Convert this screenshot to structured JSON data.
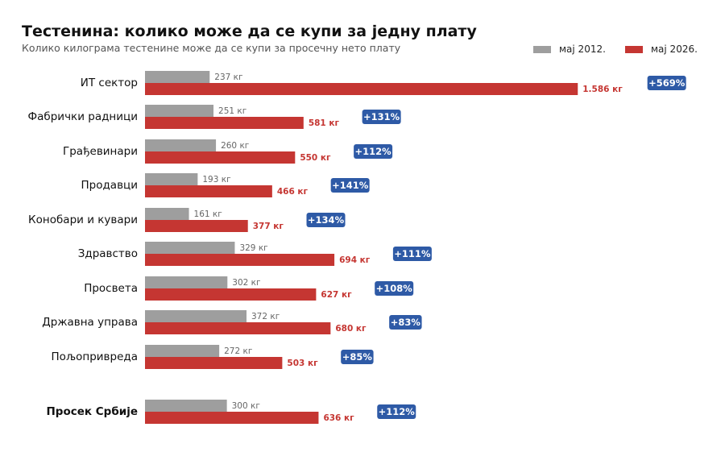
{
  "title": "Тестенина: колико може да се купи за једну плату",
  "subtitle": "Колико килограма тестенине може да се купи за просечну нето плату",
  "colors": {
    "old": "#9e9e9e",
    "new": "#c53632",
    "badge": "#2e5aa6",
    "old_label": "#666666",
    "new_label": "#c53632"
  },
  "chart_data": {
    "type": "bar",
    "orientation": "horizontal",
    "categories": [
      "ИТ сектор",
      "Фабрички радници",
      "Грађевинари",
      "Продавци",
      "Конобари и кувари",
      "Здравство",
      "Просвета",
      "Државна управа",
      "Пољопривреда",
      "Просек Србије"
    ],
    "series": [
      {
        "name": "мај 2012.",
        "values": [
          237,
          251,
          260,
          193,
          161,
          329,
          302,
          372,
          272,
          300
        ],
        "labels": [
          "237 кг",
          "251 кг",
          "260 кг",
          "193 кг",
          "161 кг",
          "329 кг",
          "302 кг",
          "372 кг",
          "272 кг",
          "300 кг"
        ]
      },
      {
        "name": "мај 2026.",
        "values": [
          1586,
          581,
          550,
          466,
          377,
          694,
          627,
          680,
          503,
          636
        ],
        "labels": [
          "1.586 кг",
          "581 кг",
          "550 кг",
          "466 кг",
          "377 кг",
          "694 кг",
          "627 кг",
          "680 кг",
          "503 кг",
          "636 кг"
        ]
      }
    ],
    "changes": [
      "+569%",
      "+131%",
      "+112%",
      "+141%",
      "+134%",
      "+111%",
      "+108%",
      "+83%",
      "+85%",
      "+112%"
    ],
    "highlight_category": "Просек Србије",
    "xlim": [
      0,
      1600
    ],
    "legend_position": "top-right",
    "grid": false
  }
}
